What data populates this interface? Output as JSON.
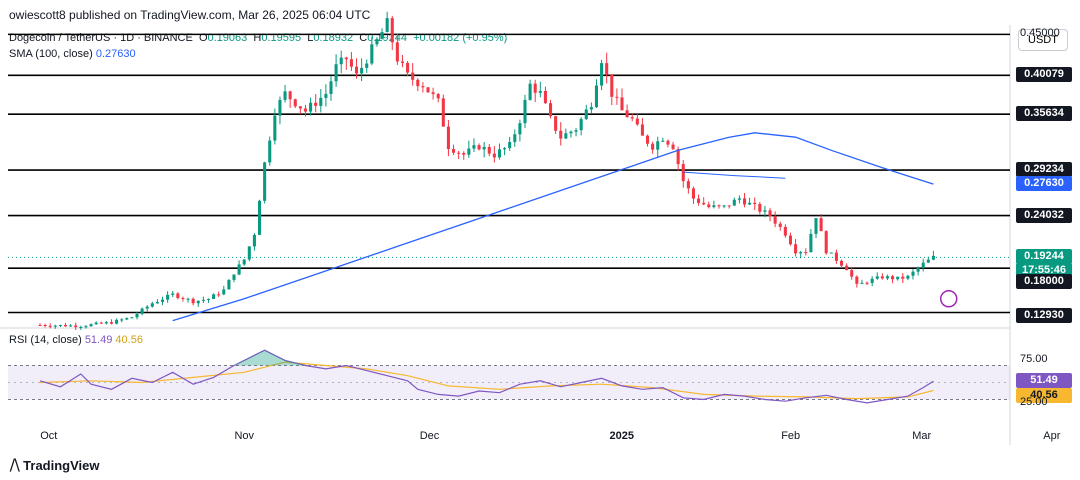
{
  "publisher_line": "owiescott8 published on TradingView.com, Mar 26, 2025 06:04 UTC",
  "legend": {
    "symbol": "Dogecoin / TetherUS · 1D · BINANCE",
    "o_label": "O",
    "o": "0.19063",
    "h_label": "H",
    "h": "0.19595",
    "l_label": "L",
    "l": "0.18932",
    "c_label": "C",
    "c": "0.19244",
    "change": "+0.00182 (+0.95%)",
    "sma_label": "SMA (100, close)",
    "sma_value": "0.27630",
    "rsi_label": "RSI (14, close)",
    "rsi_value": "51.49",
    "rsi_ma_value": "40.56"
  },
  "currency_button": "USDT",
  "brand": "TradingView",
  "colors": {
    "up": "#089981",
    "down": "#f23645",
    "sma": "#2962ff",
    "rsi": "#7e57c2",
    "rsi_ma": "#f7b731",
    "level": "#000000"
  },
  "chart_data": {
    "type": "line",
    "title": "Dogecoin / TetherUS · 1D · BINANCE",
    "price_scale_labels": [
      "0.45000",
      "0.40079",
      "0.35634",
      "0.29234",
      "0.27630",
      "0.24032",
      "0.19244",
      "17:55:46",
      "0.18000",
      "0.12930"
    ],
    "x_tick_labels": [
      "Oct",
      "Nov",
      "Dec",
      "2025",
      "Feb",
      "Mar",
      "Apr"
    ],
    "horizontal_levels": [
      0.40079,
      0.35634,
      0.29234,
      0.24032,
      0.18,
      0.1293
    ],
    "top_hidden_level": 0.45,
    "last_price": 0.19244,
    "countdown": "17:55:46",
    "sma_100_last": 0.2763,
    "price_path": [
      [
        0,
        0.115
      ],
      [
        8,
        0.114
      ],
      [
        14,
        0.118
      ],
      [
        18,
        0.124
      ],
      [
        20,
        0.132
      ],
      [
        22,
        0.14
      ],
      [
        26,
        0.15
      ],
      [
        30,
        0.142
      ],
      [
        33,
        0.145
      ],
      [
        36,
        0.155
      ],
      [
        38,
        0.175
      ],
      [
        40,
        0.19
      ],
      [
        42,
        0.22
      ],
      [
        44,
        0.3
      ],
      [
        46,
        0.36
      ],
      [
        48,
        0.38
      ],
      [
        50,
        0.37
      ],
      [
        52,
        0.36
      ],
      [
        54,
        0.37
      ],
      [
        56,
        0.38
      ],
      [
        58,
        0.41
      ],
      [
        60,
        0.42
      ],
      [
        62,
        0.4
      ],
      [
        65,
        0.43
      ],
      [
        68,
        0.46
      ],
      [
        70,
        0.42
      ],
      [
        72,
        0.4
      ],
      [
        75,
        0.39
      ],
      [
        78,
        0.37
      ],
      [
        80,
        0.32
      ],
      [
        83,
        0.31
      ],
      [
        86,
        0.32
      ],
      [
        89,
        0.31
      ],
      [
        92,
        0.32
      ],
      [
        94,
        0.35
      ],
      [
        96,
        0.39
      ],
      [
        98,
        0.38
      ],
      [
        100,
        0.35
      ],
      [
        102,
        0.33
      ],
      [
        105,
        0.34
      ],
      [
        108,
        0.37
      ],
      [
        110,
        0.42
      ],
      [
        112,
        0.38
      ],
      [
        114,
        0.36
      ],
      [
        116,
        0.35
      ],
      [
        118,
        0.33
      ],
      [
        120,
        0.32
      ],
      [
        122,
        0.33
      ],
      [
        124,
        0.32
      ],
      [
        126,
        0.28
      ],
      [
        128,
        0.26
      ],
      [
        131,
        0.25
      ],
      [
        134,
        0.25
      ],
      [
        137,
        0.26
      ],
      [
        140,
        0.25
      ],
      [
        143,
        0.24
      ],
      [
        146,
        0.22
      ],
      [
        148,
        0.2
      ],
      [
        150,
        0.2
      ],
      [
        152,
        0.24
      ],
      [
        154,
        0.2
      ],
      [
        156,
        0.19
      ],
      [
        158,
        0.18
      ],
      [
        160,
        0.16
      ],
      [
        162,
        0.165
      ],
      [
        165,
        0.17
      ],
      [
        168,
        0.168
      ],
      [
        170,
        0.17
      ],
      [
        173,
        0.185
      ],
      [
        175,
        0.19244
      ]
    ],
    "sma_100_path": [
      [
        26,
        0.12
      ],
      [
        40,
        0.145
      ],
      [
        55,
        0.175
      ],
      [
        70,
        0.205
      ],
      [
        85,
        0.235
      ],
      [
        100,
        0.265
      ],
      [
        115,
        0.295
      ],
      [
        125,
        0.315
      ],
      [
        135,
        0.33
      ],
      [
        140,
        0.335
      ],
      [
        148,
        0.33
      ],
      [
        155,
        0.315
      ],
      [
        165,
        0.295
      ],
      [
        175,
        0.2763
      ]
    ],
    "ema_path": [
      [
        126,
        0.29
      ],
      [
        136,
        0.286
      ],
      [
        146,
        0.283
      ]
    ],
    "rsi": {
      "label": "RSI (14, close)",
      "levels": [
        75.0,
        51.49,
        40.56,
        25.0
      ],
      "upper_band": 70,
      "lower_band": 30,
      "rsi_last": 51.49,
      "rsi_ma_last": 40.56,
      "rsi_path": [
        [
          0,
          52
        ],
        [
          4,
          45
        ],
        [
          8,
          60
        ],
        [
          10,
          48
        ],
        [
          14,
          42
        ],
        [
          18,
          55
        ],
        [
          22,
          50
        ],
        [
          26,
          62
        ],
        [
          30,
          48
        ],
        [
          34,
          56
        ],
        [
          38,
          70
        ],
        [
          42,
          82
        ],
        [
          44,
          88
        ],
        [
          46,
          82
        ],
        [
          48,
          76
        ],
        [
          52,
          70
        ],
        [
          56,
          66
        ],
        [
          60,
          70
        ],
        [
          64,
          64
        ],
        [
          68,
          58
        ],
        [
          72,
          52
        ],
        [
          74,
          42
        ],
        [
          78,
          36
        ],
        [
          82,
          34
        ],
        [
          86,
          40
        ],
        [
          90,
          38
        ],
        [
          94,
          48
        ],
        [
          98,
          52
        ],
        [
          102,
          45
        ],
        [
          106,
          50
        ],
        [
          110,
          55
        ],
        [
          114,
          46
        ],
        [
          118,
          42
        ],
        [
          122,
          44
        ],
        [
          126,
          32
        ],
        [
          130,
          30
        ],
        [
          134,
          36
        ],
        [
          138,
          34
        ],
        [
          142,
          30
        ],
        [
          146,
          28
        ],
        [
          150,
          32
        ],
        [
          154,
          35
        ],
        [
          158,
          30
        ],
        [
          162,
          26
        ],
        [
          166,
          30
        ],
        [
          170,
          34
        ],
        [
          173,
          44
        ],
        [
          175,
          51.49
        ]
      ],
      "rsi_ma_path": [
        [
          0,
          50
        ],
        [
          10,
          52
        ],
        [
          20,
          50
        ],
        [
          30,
          56
        ],
        [
          40,
          62
        ],
        [
          48,
          74
        ],
        [
          56,
          70
        ],
        [
          64,
          66
        ],
        [
          72,
          58
        ],
        [
          80,
          46
        ],
        [
          90,
          42
        ],
        [
          100,
          46
        ],
        [
          110,
          48
        ],
        [
          120,
          44
        ],
        [
          130,
          36
        ],
        [
          140,
          34
        ],
        [
          150,
          33
        ],
        [
          160,
          31
        ],
        [
          170,
          33
        ],
        [
          175,
          40.56
        ]
      ]
    }
  }
}
